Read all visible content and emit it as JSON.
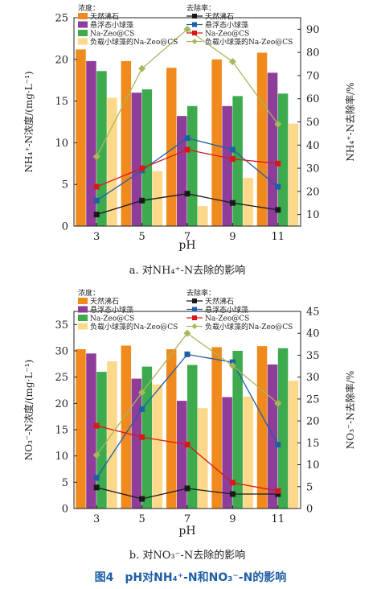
{
  "figure_caption": "图4　pH对NH₄⁺-N和NO₃⁻-N的影响",
  "chart_data": [
    {
      "type": "bar",
      "subtitle": "a. 对NH₄⁺-N去除的影响",
      "xlabel": "pH",
      "ylabel": "NH₄⁺-N浓度/(mg·L⁻¹)",
      "ylabel_right": "NH₄⁺-N去除率/%",
      "categories": [
        "3",
        "5",
        "7",
        "9",
        "11"
      ],
      "ylim": [
        0,
        25
      ],
      "yticks": [
        "0",
        "5",
        "10",
        "15",
        "20",
        "25"
      ],
      "ylim_right": [
        5,
        95
      ],
      "yticks_right": [
        "10",
        "20",
        "30",
        "40",
        "50",
        "60",
        "70",
        "80",
        "90"
      ],
      "legend_header_left": "浓度：",
      "legend_header_right": "去除率：",
      "series": [
        {
          "name": "天然沸石",
          "color": "#F08A1C",
          "values": [
            21.2,
            19.8,
            19.0,
            20.0,
            20.8
          ]
        },
        {
          "name": "悬浮态小球藻",
          "color": "#8E3E98",
          "values": [
            19.8,
            16.0,
            13.2,
            14.4,
            18.4
          ]
        },
        {
          "name": "Na-Zeo@CS",
          "color": "#3DAA4E",
          "values": [
            18.6,
            16.4,
            14.4,
            15.6,
            15.9
          ]
        },
        {
          "name": "负载小球藻的Na-Zeo@CS",
          "color": "#FCD98A",
          "values": [
            15.4,
            6.6,
            2.4,
            5.8,
            12.3
          ]
        }
      ],
      "line_series": [
        {
          "name": "天然沸石",
          "color": "#1A1A1A",
          "values": [
            10,
            16,
            19,
            15,
            12
          ]
        },
        {
          "name": "悬浮态小球藻",
          "color": "#1F5FA6",
          "values": [
            16,
            29,
            43,
            38,
            22
          ]
        },
        {
          "name": "Na-Zeo@CS",
          "color": "#D7191C",
          "values": [
            22,
            30,
            38,
            34,
            32
          ]
        },
        {
          "name": "负载小球藻的Na-Zeo@CS",
          "color": "#A6B85C",
          "values": [
            35,
            73,
            90,
            76,
            49
          ]
        }
      ]
    },
    {
      "type": "bar",
      "subtitle": "b. 对NO₃⁻-N去除的影响",
      "xlabel": "pH",
      "ylabel": "NO₃⁻-N浓度/(mg·L⁻¹)",
      "ylabel_right": "NO₃⁻-N去除率/%",
      "categories": [
        "3",
        "5",
        "7",
        "9",
        "11"
      ],
      "ylim": [
        0,
        37.5
      ],
      "yticks": [
        "0",
        "5",
        "10",
        "15",
        "20",
        "25",
        "30",
        "35"
      ],
      "ylim_right": [
        0,
        45
      ],
      "yticks_right": [
        "0",
        "5",
        "10",
        "15",
        "20",
        "25",
        "30",
        "35",
        "40",
        "45"
      ],
      "legend_header_left": "浓度：",
      "legend_header_right": "去除率：",
      "series": [
        {
          "name": "天然沸石",
          "color": "#F08A1C",
          "values": [
            30.3,
            31.0,
            30.3,
            30.7,
            30.9
          ]
        },
        {
          "name": "悬浮态小球藻",
          "color": "#8E3E98",
          "values": [
            29.5,
            24.7,
            20.5,
            21.2,
            27.4
          ]
        },
        {
          "name": "Na-Zeo@CS",
          "color": "#3DAA4E",
          "values": [
            26.0,
            27.0,
            27.3,
            30.0,
            30.5
          ]
        },
        {
          "name": "负载小球藻的Na-Zeo@CS",
          "color": "#FCD98A",
          "values": [
            28.0,
            23.6,
            19.1,
            21.3,
            24.3
          ]
        }
      ],
      "line_series": [
        {
          "name": "天然沸石",
          "color": "#1A1A1A",
          "values": [
            4.8,
            2.2,
            4.6,
            3.3,
            3.3
          ]
        },
        {
          "name": "悬浮态小球藻",
          "color": "#1F5FA6",
          "values": [
            7.0,
            22.7,
            35.2,
            33.4,
            14.6
          ]
        },
        {
          "name": "Na-Zeo@CS",
          "color": "#D7191C",
          "values": [
            18.9,
            16.3,
            14.6,
            5.9,
            4.0
          ]
        },
        {
          "name": "负载小球藻的Na-Zeo@CS",
          "color": "#A6B85C",
          "values": [
            12.2,
            26.5,
            40.0,
            32.6,
            24.0
          ]
        }
      ]
    }
  ]
}
